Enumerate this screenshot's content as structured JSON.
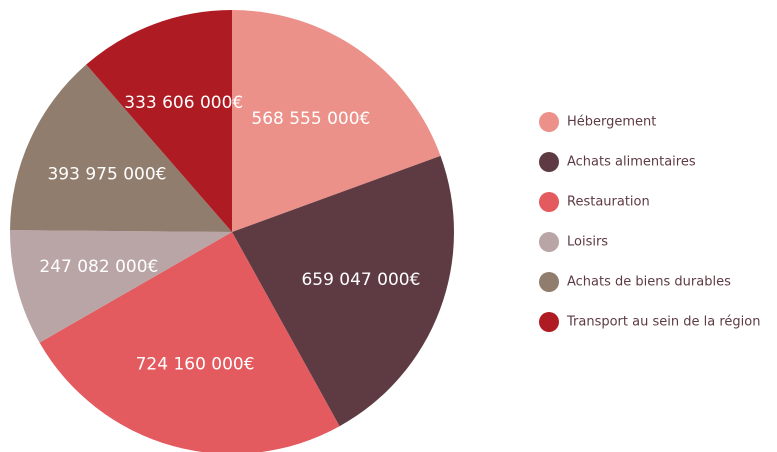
{
  "chart_data": {
    "type": "pie",
    "categories": [
      "Hébergement",
      "Achats alimentaires",
      "Restauration",
      "Loisirs",
      "Achats de biens durables",
      "Transport au sein de la région"
    ],
    "values": [
      568555000,
      659047000,
      724160000,
      247082000,
      393975000,
      333606000
    ],
    "value_labels": [
      "568 555 000€",
      "659 047 000€",
      "724 160 000€",
      "247 082 000€",
      "393 975 000€",
      "333 606 000€"
    ],
    "colors": [
      "#eb9189",
      "#5e3b42",
      "#e35a5f",
      "#b9a4a6",
      "#917d6e",
      "#ae1b22"
    ],
    "legend": "right"
  }
}
